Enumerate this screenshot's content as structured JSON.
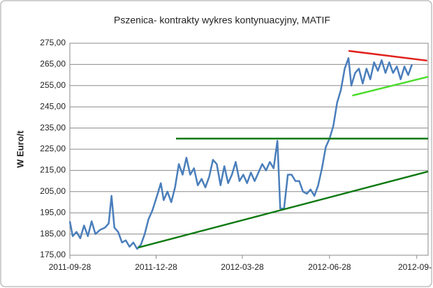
{
  "chart_data": {
    "type": "line",
    "title": "Pszenica- kontrakty wykres kontynuacyjny, MATIF",
    "y_label": "W Euro/t",
    "x": [
      "2011-09-28",
      "2011-10-01",
      "2011-10-05",
      "2011-10-09",
      "2011-10-13",
      "2011-10-17",
      "2011-10-21",
      "2011-10-25",
      "2011-10-30",
      "2011-11-04",
      "2011-11-08",
      "2011-11-11",
      "2011-11-14",
      "2011-11-18",
      "2011-11-22",
      "2011-11-26",
      "2011-11-30",
      "2011-12-04",
      "2011-12-08",
      "2011-12-12",
      "2011-12-16",
      "2011-12-20",
      "2011-12-24",
      "2011-12-29",
      "2012-01-02",
      "2012-01-05",
      "2012-01-09",
      "2012-01-13",
      "2012-01-17",
      "2012-01-21",
      "2012-01-25",
      "2012-01-29",
      "2012-02-02",
      "2012-02-06",
      "2012-02-10",
      "2012-02-14",
      "2012-02-18",
      "2012-02-22",
      "2012-02-26",
      "2012-03-01",
      "2012-03-05",
      "2012-03-09",
      "2012-03-13",
      "2012-03-17",
      "2012-03-21",
      "2012-03-25",
      "2012-03-29",
      "2012-04-02",
      "2012-04-06",
      "2012-04-10",
      "2012-04-14",
      "2012-04-18",
      "2012-04-22",
      "2012-04-26",
      "2012-04-30",
      "2012-05-04",
      "2012-05-07",
      "2012-05-11",
      "2012-05-15",
      "2012-05-19",
      "2012-05-23",
      "2012-05-27",
      "2012-05-31",
      "2012-06-04",
      "2012-06-08",
      "2012-06-12",
      "2012-06-16",
      "2012-06-20",
      "2012-06-24",
      "2012-06-28",
      "2012-07-02",
      "2012-07-06",
      "2012-07-10",
      "2012-07-14",
      "2012-07-18",
      "2012-07-21",
      "2012-07-25",
      "2012-07-29",
      "2012-08-02",
      "2012-08-06",
      "2012-08-10",
      "2012-08-14",
      "2012-08-18",
      "2012-08-22",
      "2012-08-26",
      "2012-08-30",
      "2012-09-03",
      "2012-09-07",
      "2012-09-11",
      "2012-09-15",
      "2012-09-19",
      "2012-09-23"
    ],
    "series": [
      {
        "color": "#4a7ebb",
        "values": [
          191,
          184,
          186,
          183,
          189,
          184,
          191,
          185,
          187,
          188,
          190,
          203,
          188,
          186,
          181,
          182,
          179,
          181,
          178,
          180,
          185,
          192,
          196,
          203,
          209,
          201,
          205,
          200,
          207,
          218,
          213,
          221,
          213,
          216,
          208,
          211,
          207,
          212,
          220,
          218,
          208,
          217,
          209,
          213,
          219,
          210,
          213,
          209,
          214,
          210,
          214,
          218,
          215,
          219,
          216,
          229,
          197,
          197,
          213,
          213,
          210,
          210,
          205,
          204,
          206,
          203,
          208,
          216,
          226,
          230,
          236,
          247,
          253,
          263,
          268,
          255,
          261,
          263,
          256,
          263,
          258,
          266,
          262,
          267,
          261,
          266,
          261,
          264,
          258,
          264,
          260,
          265
        ]
      }
    ],
    "trendlines": [
      {
        "color": "#e0201c",
        "x": [
          "2012-07-18",
          "2012-10-09"
        ],
        "y": [
          271.4,
          266.8
        ]
      },
      {
        "color": "#4cdc2c",
        "x": [
          "2012-07-22",
          "2012-10-10"
        ],
        "y": [
          250.3,
          259.2
        ]
      },
      {
        "color": "#0f7a12",
        "x": [
          "2012-01-18",
          "2012-10-10"
        ],
        "y": [
          230,
          230
        ]
      },
      {
        "color": "#0f7a12",
        "x": [
          "2011-12-09",
          "2012-10-10"
        ],
        "y": [
          178.6,
          214.5
        ]
      }
    ],
    "xlim": [
      "2011-09-28",
      "2012-10-10"
    ],
    "xticks": [
      "2011-09-28",
      "2011-12-28",
      "2012-03-28",
      "2012-06-28",
      {
        "value": "2012-09-28",
        "label": "2012-09-"
      }
    ],
    "ylim": [
      175,
      275
    ],
    "yticks": [
      {
        "value": 175,
        "label": "175,00"
      },
      {
        "value": 185,
        "label": "185,00"
      },
      {
        "value": 195,
        "label": "195,00"
      },
      {
        "value": 205,
        "label": "205,00"
      },
      {
        "value": 215,
        "label": "215,00"
      },
      {
        "value": 225,
        "label": "225,00"
      },
      {
        "value": 235,
        "label": "235,00"
      },
      {
        "value": 245,
        "label": "245,00"
      },
      {
        "value": 255,
        "label": "255,00"
      },
      {
        "value": 265,
        "label": "265,00"
      },
      {
        "value": 275,
        "label": "275,00"
      }
    ],
    "grid": true
  }
}
